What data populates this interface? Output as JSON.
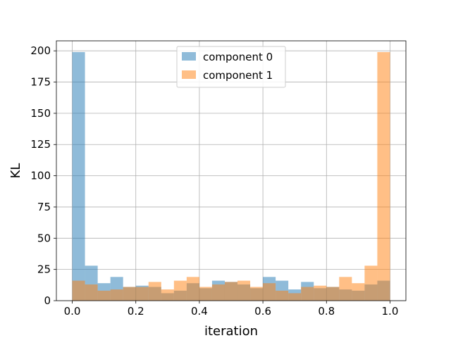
{
  "chart_data": {
    "type": "bar",
    "chart_kind": "histogram",
    "xlabel": "iteration",
    "ylabel": "KL",
    "xlim": [
      -0.05,
      1.05
    ],
    "ylim": [
      0,
      208
    ],
    "grid": true,
    "legend_position": "top-center",
    "x_ticks": [
      "0.0",
      "0.2",
      "0.4",
      "0.6",
      "0.8",
      "1.0"
    ],
    "x_tick_values": [
      0.0,
      0.2,
      0.4,
      0.6,
      0.8,
      1.0
    ],
    "y_ticks": [
      "0",
      "25",
      "50",
      "75",
      "100",
      "125",
      "150",
      "175",
      "200"
    ],
    "y_tick_values": [
      0,
      25,
      50,
      75,
      100,
      125,
      150,
      175,
      200
    ],
    "bin_edges": [
      0.0,
      0.04,
      0.08,
      0.12,
      0.16,
      0.2,
      0.24,
      0.28,
      0.32,
      0.36,
      0.4,
      0.44,
      0.48,
      0.52,
      0.56,
      0.6,
      0.64,
      0.68,
      0.72,
      0.76,
      0.8,
      0.84,
      0.88,
      0.92,
      0.96,
      1.0
    ],
    "series": [
      {
        "name": "component 0",
        "color": "#1f77b4",
        "values": [
          199,
          28,
          14,
          19,
          11,
          12,
          11,
          6,
          8,
          14,
          10,
          16,
          15,
          13,
          10,
          19,
          16,
          9,
          15,
          10,
          11,
          9,
          8,
          13,
          16
        ]
      },
      {
        "name": "component 1",
        "color": "#ff7f0e",
        "values": [
          16,
          13,
          8,
          9,
          11,
          11,
          15,
          9,
          16,
          19,
          11,
          13,
          15,
          16,
          11,
          14,
          8,
          6,
          11,
          12,
          11,
          19,
          14,
          28,
          199
        ]
      }
    ]
  }
}
